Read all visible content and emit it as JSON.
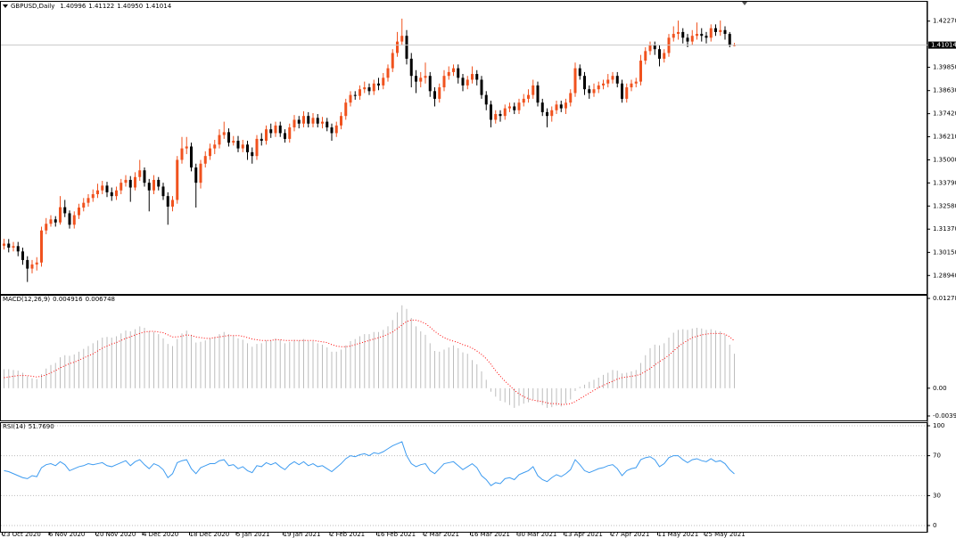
{
  "chart_data": [
    {
      "type": "candlestick",
      "title": "GBPUSD,Daily",
      "quote": [
        "1.40996",
        "1.41122",
        "1.40950",
        "1.41014"
      ],
      "up_color": "#f0521e",
      "down_color": "#000000",
      "last_line_color": "#c8c8c8",
      "ylim": [
        1.2816,
        1.4319
      ],
      "yticks": [
        {
          "value": 1.4227,
          "label": "1.42270"
        },
        {
          "value": 1.3985,
          "label": "1.39850"
        },
        {
          "value": 1.3863,
          "label": "1.38630"
        },
        {
          "value": 1.3742,
          "label": "1.37420"
        },
        {
          "value": 1.3621,
          "label": "1.36210"
        },
        {
          "value": 1.35,
          "label": "1.35000"
        },
        {
          "value": 1.3379,
          "label": "1.33790"
        },
        {
          "value": 1.3258,
          "label": "1.32580"
        },
        {
          "value": 1.3137,
          "label": "1.31370"
        },
        {
          "value": 1.3015,
          "label": "1.30150"
        },
        {
          "value": 1.2894,
          "label": "1.28940"
        }
      ],
      "xticks": [
        {
          "value": 0,
          "label": "23 Oct 2020"
        },
        {
          "value": 10,
          "label": "6 Nov 2020"
        },
        {
          "value": 20,
          "label": "20 Nov 2020"
        },
        {
          "value": 30,
          "label": "4 Dec 2020"
        },
        {
          "value": 40,
          "label": "18 Dec 2020"
        },
        {
          "value": 50,
          "label": "5 Jan 2021"
        },
        {
          "value": 60,
          "label": "19 Jan 2021"
        },
        {
          "value": 70,
          "label": "2 Feb 2021"
        },
        {
          "value": 80,
          "label": "16 Feb 2021"
        },
        {
          "value": 90,
          "label": "2 Mar 2021"
        },
        {
          "value": 100,
          "label": "16 Mar 2021"
        },
        {
          "value": 110,
          "label": "30 Mar 2021"
        },
        {
          "value": 120,
          "label": "13 Apr 2021"
        },
        {
          "value": 130,
          "label": "27 Apr 2021"
        },
        {
          "value": 140,
          "label": "11 May 2021"
        },
        {
          "value": 150,
          "label": "25 May 2021"
        }
      ],
      "open": [
        1.305,
        1.3061,
        1.304,
        1.3048,
        1.302,
        1.2975,
        1.293,
        1.2952,
        1.2962,
        1.313,
        1.3165,
        1.3188,
        1.3172,
        1.3252,
        1.322,
        1.316,
        1.321,
        1.325,
        1.3275,
        1.33,
        1.332,
        1.334,
        1.3365,
        1.333,
        1.331,
        1.334,
        1.338,
        1.3395,
        1.3355,
        1.341,
        1.3445,
        1.338,
        1.334,
        1.3395,
        1.336,
        1.331,
        1.3255,
        1.329,
        1.35,
        1.356,
        1.357,
        1.346,
        1.338,
        1.348,
        1.352,
        1.356,
        1.358,
        1.363,
        1.3645,
        1.359,
        1.36,
        1.356,
        1.358,
        1.354,
        1.352,
        1.361,
        1.36,
        1.366,
        1.364,
        1.368,
        1.364,
        1.361,
        1.367,
        1.371,
        1.369,
        1.373,
        1.369,
        1.372,
        1.369,
        1.37,
        1.367,
        1.364,
        1.368,
        1.373,
        1.38,
        1.384,
        1.3835,
        1.387,
        1.388,
        1.386,
        1.39,
        1.389,
        1.393,
        1.398,
        1.406,
        1.412,
        1.415,
        1.403,
        1.394,
        1.391,
        1.393,
        1.394,
        1.386,
        1.382,
        1.388,
        1.394,
        1.396,
        1.398,
        1.393,
        1.389,
        1.392,
        1.395,
        1.392,
        1.384,
        1.379,
        1.371,
        1.374,
        1.373,
        1.377,
        1.378,
        1.376,
        1.38,
        1.382,
        1.384,
        1.389,
        1.38,
        1.375,
        1.373,
        1.376,
        1.379,
        1.377,
        1.38,
        1.385,
        1.398,
        1.394,
        1.387,
        1.385,
        1.387,
        1.389,
        1.39,
        1.392,
        1.394,
        1.39,
        1.382,
        1.388,
        1.39,
        1.391,
        1.402,
        1.407,
        1.41,
        1.408,
        1.403,
        1.406,
        1.414,
        1.416,
        1.417,
        1.414,
        1.412,
        1.415,
        1.416,
        1.415,
        1.414,
        1.419,
        1.417,
        1.418,
        1.416,
        1.40996
      ],
      "high": [
        1.3086,
        1.3085,
        1.307,
        1.307,
        1.304,
        1.2995,
        1.2975,
        1.299,
        1.315,
        1.3195,
        1.321,
        1.3205,
        1.331,
        1.329,
        1.3235,
        1.323,
        1.327,
        1.33,
        1.332,
        1.3345,
        1.3375,
        1.339,
        1.3385,
        1.3355,
        1.336,
        1.34,
        1.342,
        1.3415,
        1.3435,
        1.35,
        1.346,
        1.34,
        1.342,
        1.341,
        1.338,
        1.333,
        1.331,
        1.352,
        1.362,
        1.362,
        1.359,
        1.348,
        1.35,
        1.3545,
        1.3585,
        1.3605,
        1.366,
        1.37,
        1.3665,
        1.3625,
        1.3625,
        1.3605,
        1.36,
        1.3565,
        1.363,
        1.364,
        1.368,
        1.369,
        1.37,
        1.37,
        1.366,
        1.369,
        1.3735,
        1.373,
        1.3755,
        1.375,
        1.3745,
        1.374,
        1.3725,
        1.372,
        1.369,
        1.37,
        1.375,
        1.382,
        1.386,
        1.386,
        1.389,
        1.391,
        1.39,
        1.392,
        1.393,
        1.3955,
        1.4,
        1.408,
        1.417,
        1.424,
        1.418,
        1.406,
        1.397,
        1.396,
        1.401,
        1.396,
        1.388,
        1.39,
        1.397,
        1.399,
        1.4,
        1.4,
        1.395,
        1.394,
        1.399,
        1.397,
        1.394,
        1.386,
        1.381,
        1.376,
        1.376,
        1.379,
        1.38,
        1.38,
        1.382,
        1.3845,
        1.387,
        1.392,
        1.391,
        1.382,
        1.377,
        1.378,
        1.381,
        1.381,
        1.382,
        1.387,
        1.401,
        1.4,
        1.396,
        1.389,
        1.39,
        1.391,
        1.392,
        1.395,
        1.396,
        1.396,
        1.392,
        1.39,
        1.392,
        1.393,
        1.405,
        1.409,
        1.412,
        1.412,
        1.41,
        1.408,
        1.416,
        1.42,
        1.423,
        1.419,
        1.416,
        1.418,
        1.422,
        1.419,
        1.417,
        1.421,
        1.421,
        1.423,
        1.42,
        1.417,
        1.41122
      ],
      "low": [
        1.303,
        1.3015,
        1.302,
        1.2995,
        1.295,
        1.286,
        1.2905,
        1.292,
        1.294,
        1.311,
        1.315,
        1.315,
        1.316,
        1.32,
        1.314,
        1.314,
        1.319,
        1.323,
        1.3255,
        1.328,
        1.33,
        1.332,
        1.3305,
        1.3285,
        1.329,
        1.332,
        1.336,
        1.328,
        1.334,
        1.339,
        1.336,
        1.323,
        1.332,
        1.334,
        1.329,
        1.316,
        1.323,
        1.327,
        1.348,
        1.353,
        1.344,
        1.325,
        1.335,
        1.346,
        1.35,
        1.353,
        1.356,
        1.361,
        1.357,
        1.3575,
        1.354,
        1.354,
        1.35,
        1.348,
        1.35,
        1.3575,
        1.358,
        1.3615,
        1.362,
        1.362,
        1.359,
        1.359,
        1.365,
        1.3665,
        1.367,
        1.367,
        1.367,
        1.367,
        1.3665,
        1.365,
        1.36,
        1.362,
        1.366,
        1.371,
        1.378,
        1.3815,
        1.3815,
        1.385,
        1.384,
        1.384,
        1.3865,
        1.387,
        1.391,
        1.396,
        1.404,
        1.41,
        1.4,
        1.388,
        1.385,
        1.388,
        1.39,
        1.383,
        1.378,
        1.38,
        1.386,
        1.392,
        1.394,
        1.39,
        1.386,
        1.387,
        1.39,
        1.389,
        1.382,
        1.376,
        1.367,
        1.369,
        1.37,
        1.371,
        1.375,
        1.374,
        1.374,
        1.378,
        1.38,
        1.382,
        1.378,
        1.373,
        1.367,
        1.37,
        1.374,
        1.375,
        1.374,
        1.378,
        1.383,
        1.392,
        1.384,
        1.382,
        1.383,
        1.385,
        1.387,
        1.388,
        1.39,
        1.388,
        1.38,
        1.38,
        1.386,
        1.388,
        1.389,
        1.4,
        1.405,
        1.405,
        1.399,
        1.401,
        1.404,
        1.412,
        1.413,
        1.411,
        1.409,
        1.41,
        1.413,
        1.412,
        1.411,
        1.412,
        1.415,
        1.415,
        1.413,
        1.409,
        1.4095
      ],
      "close": [
        1.3061,
        1.304,
        1.3048,
        1.302,
        1.2975,
        1.293,
        1.2952,
        1.2962,
        1.313,
        1.3165,
        1.3188,
        1.3172,
        1.3252,
        1.322,
        1.316,
        1.321,
        1.325,
        1.3275,
        1.33,
        1.332,
        1.334,
        1.3365,
        1.333,
        1.331,
        1.334,
        1.338,
        1.3395,
        1.3355,
        1.341,
        1.3445,
        1.338,
        1.334,
        1.3395,
        1.336,
        1.331,
        1.3255,
        1.329,
        1.35,
        1.356,
        1.357,
        1.346,
        1.338,
        1.348,
        1.352,
        1.356,
        1.358,
        1.363,
        1.3645,
        1.359,
        1.36,
        1.356,
        1.358,
        1.354,
        1.352,
        1.361,
        1.36,
        1.366,
        1.364,
        1.368,
        1.364,
        1.361,
        1.367,
        1.371,
        1.369,
        1.373,
        1.369,
        1.372,
        1.369,
        1.37,
        1.367,
        1.364,
        1.368,
        1.373,
        1.38,
        1.384,
        1.3835,
        1.387,
        1.388,
        1.386,
        1.39,
        1.389,
        1.393,
        1.398,
        1.406,
        1.412,
        1.415,
        1.403,
        1.394,
        1.391,
        1.393,
        1.394,
        1.386,
        1.382,
        1.388,
        1.394,
        1.396,
        1.398,
        1.393,
        1.389,
        1.392,
        1.395,
        1.392,
        1.384,
        1.379,
        1.371,
        1.374,
        1.373,
        1.377,
        1.378,
        1.376,
        1.38,
        1.382,
        1.384,
        1.389,
        1.38,
        1.375,
        1.373,
        1.376,
        1.379,
        1.377,
        1.38,
        1.385,
        1.398,
        1.394,
        1.387,
        1.385,
        1.387,
        1.389,
        1.39,
        1.392,
        1.394,
        1.39,
        1.382,
        1.388,
        1.39,
        1.391,
        1.402,
        1.407,
        1.41,
        1.408,
        1.403,
        1.406,
        1.414,
        1.416,
        1.417,
        1.414,
        1.412,
        1.415,
        1.416,
        1.415,
        1.414,
        1.419,
        1.417,
        1.418,
        1.416,
        1.41,
        1.41014
      ]
    },
    {
      "type": "macd",
      "title": "MACD(12,26,9)",
      "hist_color": "#bdbdbd",
      "signal_color": "#ff0000",
      "ylim": [
        -0.003952,
        0.012786
      ],
      "yticks": [
        0.012786,
        {
          "value": 0,
          "label": "0.00"
        },
        -0.003952
      ],
      "histogram": [
        0.0027,
        0.0027,
        0.0026,
        0.0025,
        0.0022,
        0.0017,
        0.0014,
        0.0013,
        0.002,
        0.0028,
        0.0033,
        0.0036,
        0.0044,
        0.0047,
        0.0046,
        0.0048,
        0.0052,
        0.0056,
        0.006,
        0.0064,
        0.0068,
        0.0072,
        0.0073,
        0.0072,
        0.0074,
        0.0078,
        0.0082,
        0.0081,
        0.0084,
        0.0088,
        0.0086,
        0.0081,
        0.008,
        0.0077,
        0.0071,
        0.0063,
        0.006,
        0.007,
        0.0078,
        0.0082,
        0.0076,
        0.0065,
        0.0066,
        0.0068,
        0.0071,
        0.0073,
        0.0077,
        0.008,
        0.0077,
        0.0075,
        0.0071,
        0.0069,
        0.0064,
        0.0059,
        0.0063,
        0.0064,
        0.0068,
        0.0068,
        0.0071,
        0.0069,
        0.0064,
        0.0066,
        0.0069,
        0.0068,
        0.007,
        0.0067,
        0.0067,
        0.0064,
        0.0062,
        0.0058,
        0.0052,
        0.0052,
        0.0055,
        0.0061,
        0.0067,
        0.007,
        0.0074,
        0.0077,
        0.0077,
        0.008,
        0.008,
        0.0083,
        0.0088,
        0.0097,
        0.0108,
        0.0118,
        0.0113,
        0.01,
        0.0088,
        0.0081,
        0.0076,
        0.0064,
        0.0053,
        0.0052,
        0.0055,
        0.0058,
        0.0061,
        0.0057,
        0.0051,
        0.0049,
        0.004,
        0.0034,
        0.0024,
        0.0012,
        -0.0005,
        -0.0012,
        -0.0018,
        -0.002,
        -0.0024,
        -0.0028,
        -0.0025,
        -0.0022,
        -0.002,
        -0.0016,
        -0.002,
        -0.0024,
        -0.0028,
        -0.0027,
        -0.0025,
        -0.0026,
        -0.0022,
        -0.0016,
        -0.0004,
        0.0002,
        0.0005,
        0.0009,
        0.0012,
        0.0015,
        0.0019,
        0.0022,
        0.0026,
        0.0025,
        0.0021,
        0.0022,
        0.0024,
        0.0026,
        0.0036,
        0.0047,
        0.0057,
        0.0062,
        0.0061,
        0.0064,
        0.0072,
        0.0079,
        0.0083,
        0.0084,
        0.0083,
        0.0085,
        0.0086,
        0.0085,
        0.0083,
        0.0084,
        0.0082,
        0.0081,
        0.0076,
        0.0062,
        0.004916
      ],
      "signal": [
        0.0015,
        0.0016,
        0.0017,
        0.0018,
        0.0018,
        0.0018,
        0.0017,
        0.0016,
        0.0017,
        0.0019,
        0.0022,
        0.0025,
        0.0029,
        0.0032,
        0.0035,
        0.0037,
        0.004,
        0.0043,
        0.0046,
        0.0049,
        0.0053,
        0.0057,
        0.006,
        0.0063,
        0.0065,
        0.0068,
        0.0071,
        0.0073,
        0.0076,
        0.0078,
        0.008,
        0.0081,
        0.0081,
        0.008,
        0.0079,
        0.0076,
        0.0073,
        0.0073,
        0.0074,
        0.0076,
        0.0075,
        0.0073,
        0.0072,
        0.0071,
        0.0071,
        0.0072,
        0.0073,
        0.0074,
        0.0075,
        0.0075,
        0.0075,
        0.0074,
        0.0072,
        0.007,
        0.0069,
        0.0068,
        0.0068,
        0.0068,
        0.0069,
        0.0069,
        0.0068,
        0.0068,
        0.0068,
        0.0068,
        0.0068,
        0.0068,
        0.0068,
        0.0067,
        0.0066,
        0.0065,
        0.0062,
        0.006,
        0.0059,
        0.0059,
        0.006,
        0.0062,
        0.0064,
        0.0066,
        0.0068,
        0.007,
        0.0072,
        0.0074,
        0.0077,
        0.008,
        0.0085,
        0.009,
        0.0095,
        0.0097,
        0.0097,
        0.0095,
        0.0092,
        0.0087,
        0.0081,
        0.0076,
        0.0072,
        0.0069,
        0.0067,
        0.0065,
        0.0062,
        0.006,
        0.0057,
        0.0053,
        0.0048,
        0.0042,
        0.0034,
        0.0025,
        0.0017,
        0.001,
        0.0004,
        -0.0003,
        -0.0008,
        -0.0012,
        -0.0015,
        -0.0017,
        -0.0018,
        -0.0019,
        -0.0021,
        -0.0022,
        -0.0022,
        -0.0023,
        -0.0023,
        -0.0022,
        -0.0019,
        -0.0015,
        -0.0011,
        -0.0007,
        -0.0003,
        0.0001,
        0.0004,
        0.0007,
        0.001,
        0.0013,
        0.0015,
        0.0016,
        0.0017,
        0.0018,
        0.002,
        0.0024,
        0.0028,
        0.0033,
        0.0038,
        0.0042,
        0.0047,
        0.0053,
        0.0059,
        0.0064,
        0.0068,
        0.0072,
        0.0074,
        0.0076,
        0.0077,
        0.0078,
        0.0078,
        0.0078,
        0.0077,
        0.0073,
        0.006748
      ]
    },
    {
      "type": "line",
      "title": "RSI(14)",
      "color": "#3d9bf0",
      "grid": true,
      "current": {
        "value": 51.769,
        "label": "51.7690"
      },
      "ylim": [
        0,
        100
      ],
      "yticks": [
        100,
        70,
        30,
        0
      ],
      "values": [
        55,
        54,
        52,
        50,
        48,
        47,
        50,
        49,
        58,
        61,
        62,
        60,
        64,
        61,
        55,
        57,
        59,
        60,
        62,
        61,
        62,
        63,
        60,
        59,
        61,
        63,
        65,
        60,
        64,
        66,
        61,
        57,
        62,
        60,
        56,
        48,
        52,
        63,
        65,
        66,
        57,
        52,
        58,
        60,
        62,
        62,
        65,
        66,
        60,
        61,
        57,
        59,
        55,
        53,
        60,
        59,
        63,
        61,
        63,
        59,
        56,
        61,
        64,
        61,
        64,
        60,
        62,
        59,
        60,
        57,
        54,
        58,
        62,
        67,
        70,
        69,
        71,
        72,
        70,
        73,
        72,
        74,
        77,
        80,
        82,
        84,
        70,
        62,
        59,
        61,
        62,
        55,
        52,
        57,
        62,
        63,
        64,
        60,
        56,
        59,
        62,
        58,
        50,
        46,
        40,
        43,
        42,
        47,
        48,
        46,
        51,
        53,
        55,
        59,
        50,
        46,
        44,
        48,
        51,
        49,
        52,
        56,
        66,
        61,
        55,
        53,
        55,
        57,
        58,
        60,
        61,
        57,
        50,
        55,
        57,
        58,
        66,
        68,
        69,
        66,
        59,
        62,
        68,
        70,
        70,
        66,
        63,
        66,
        67,
        65,
        64,
        67,
        64,
        65,
        62,
        56,
        51.769
      ]
    }
  ]
}
